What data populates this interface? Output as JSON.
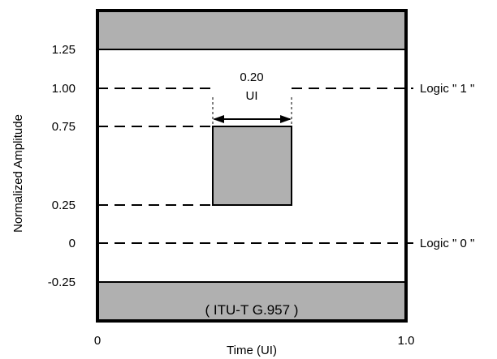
{
  "diagram": {
    "axis": {
      "y_label": "Normalized Amplitude",
      "x_label": "Time (UI)",
      "x_ticks": [
        "0",
        "1.0"
      ],
      "y_ticks": [
        "1.25",
        "1.00",
        "0.75",
        "0.25",
        "0",
        "-0.25"
      ]
    },
    "mask": {
      "standard": "( ITU-T G.957 )",
      "width_value": "0.20",
      "width_unit": "UI"
    },
    "levels": {
      "logic_one": "Logic \" 1 \"",
      "logic_zero": "Logic \" 0 \""
    },
    "colors": {
      "mask_fill": "#b0b0b0",
      "stroke": "#000000",
      "background": "#ffffff"
    }
  }
}
